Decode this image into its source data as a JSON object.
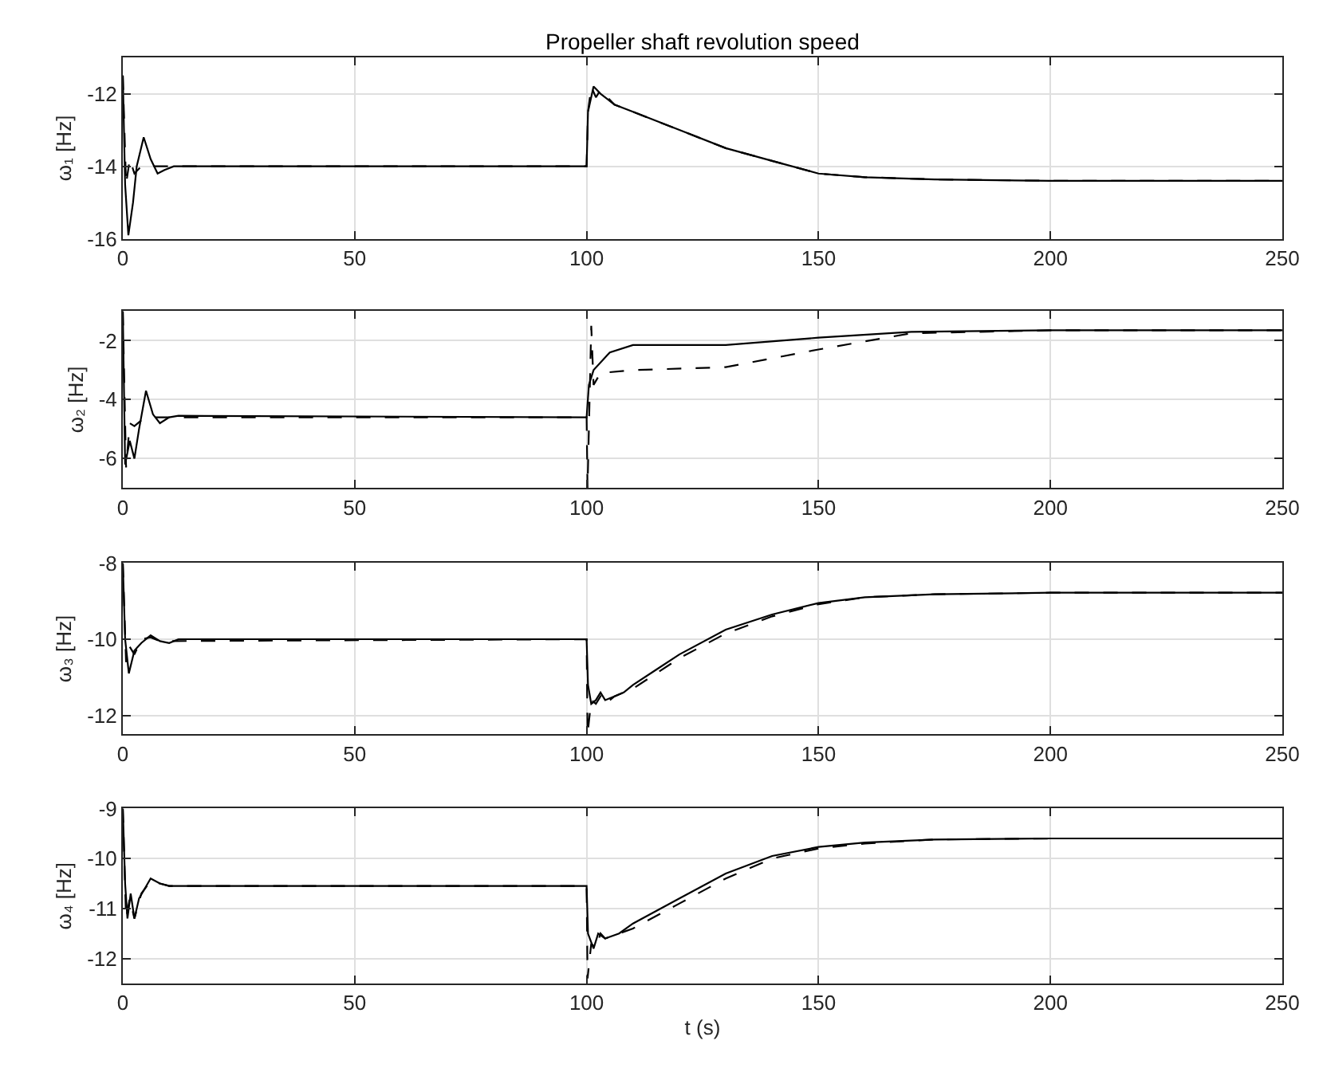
{
  "chart_data": [
    {
      "type": "line",
      "title": "Propeller shaft revolution speed",
      "ylabel": "ω₁ [Hz]",
      "xlim": [
        0,
        250
      ],
      "xticks": [
        0,
        50,
        100,
        150,
        200,
        250
      ],
      "ylim": [
        -16,
        -11
      ],
      "yticks": [
        -16,
        -14,
        -12
      ],
      "grid": true,
      "series": [
        {
          "color": "#000000",
          "line_style": "solid",
          "x": [
            0,
            0.5,
            1.2,
            2.2,
            3,
            4.5,
            6,
            7.5,
            9,
            11,
            100,
            100.3,
            101.5,
            103,
            106,
            110,
            120,
            130,
            140,
            150,
            160,
            175,
            200,
            250
          ],
          "values": [
            -11.5,
            -14.5,
            -15.9,
            -15,
            -14,
            -13.2,
            -13.8,
            -14.2,
            -14.1,
            -14,
            -14,
            -12.5,
            -11.8,
            -12,
            -12.3,
            -12.5,
            -13,
            -13.5,
            -13.85,
            -14.2,
            -14.3,
            -14.36,
            -14.4,
            -14.4
          ]
        },
        {
          "color": "#000000",
          "line_style": "dashed",
          "x": [
            0,
            0.7,
            1.5,
            2.5,
            4,
            6,
            100,
            100.3,
            101,
            102,
            103,
            106,
            110,
            120,
            130,
            140,
            150,
            160,
            175,
            200,
            250
          ],
          "values": [
            -11.5,
            -14.5,
            -13.8,
            -14.2,
            -14,
            -14,
            -14,
            -12.5,
            -11.8,
            -12.1,
            -11.9,
            -12.3,
            -12.5,
            -13,
            -13.5,
            -13.85,
            -14.2,
            -14.3,
            -14.36,
            -14.4,
            -14.4
          ]
        }
      ]
    },
    {
      "type": "line",
      "ylabel": "ω₂ [Hz]",
      "xlim": [
        0,
        250
      ],
      "xticks": [
        0,
        50,
        100,
        150,
        200,
        250
      ],
      "ylim": [
        -7,
        -1
      ],
      "yticks": [
        -6,
        -4,
        -2
      ],
      "grid": true,
      "series": [
        {
          "color": "#000000",
          "line_style": "solid",
          "x": [
            0,
            0.5,
            1.5,
            2.5,
            3.5,
            5,
            6.5,
            8,
            10,
            12,
            100,
            100.5,
            101.5,
            105,
            110,
            130,
            150,
            170,
            200,
            250
          ],
          "values": [
            -1,
            -6.2,
            -5.4,
            -6,
            -5,
            -3.7,
            -4.5,
            -4.8,
            -4.6,
            -4.55,
            -4.6,
            -3.5,
            -3,
            -2.4,
            -2.15,
            -2.15,
            -1.9,
            -1.7,
            -1.65,
            -1.65
          ]
        },
        {
          "color": "#000000",
          "line_style": "dashed",
          "x": [
            0,
            0.7,
            1.5,
            2.5,
            4,
            6,
            100,
            100.2,
            101,
            101.5,
            103,
            110,
            130,
            150,
            170,
            200,
            250
          ],
          "values": [
            -1,
            -6.3,
            -4.8,
            -4.9,
            -4.7,
            -4.6,
            -4.6,
            -7,
            -1.5,
            -3.5,
            -3.1,
            -3,
            -2.9,
            -2.3,
            -1.75,
            -1.65,
            -1.65
          ]
        }
      ]
    },
    {
      "type": "line",
      "ylabel": "ω₃ [Hz]",
      "xlim": [
        0,
        250
      ],
      "xticks": [
        0,
        50,
        100,
        150,
        200,
        250
      ],
      "ylim": [
        -12.5,
        -8
      ],
      "yticks": [
        -12,
        -10,
        -8
      ],
      "grid": true,
      "series": [
        {
          "color": "#000000",
          "line_style": "solid",
          "x": [
            0,
            0.5,
            1.3,
            2.5,
            4,
            6,
            8,
            10,
            12,
            100,
            100.3,
            101,
            102,
            103,
            104,
            106,
            108,
            110,
            115,
            120,
            130,
            140,
            150,
            160,
            175,
            200,
            250
          ],
          "values": [
            -8,
            -10,
            -10.9,
            -10.3,
            -10.1,
            -9.9,
            -10.05,
            -10.1,
            -10,
            -10,
            -11.2,
            -11.7,
            -11.6,
            -11.4,
            -11.6,
            -11.5,
            -11.4,
            -11.2,
            -10.8,
            -10.4,
            -9.75,
            -9.35,
            -9.05,
            -8.9,
            -8.82,
            -8.78,
            -8.78
          ]
        },
        {
          "color": "#000000",
          "line_style": "dashed",
          "x": [
            0,
            0.7,
            1.5,
            2.5,
            4,
            6,
            8,
            100,
            100.2,
            101,
            102,
            103,
            104,
            106,
            110,
            120,
            130,
            140,
            150,
            160,
            175,
            200,
            250
          ],
          "values": [
            -8,
            -10.6,
            -10.2,
            -10.4,
            -10,
            -9.95,
            -10.05,
            -10,
            -12.5,
            -11.6,
            -11.7,
            -11.5,
            -11.7,
            -11.5,
            -11.3,
            -10.5,
            -9.85,
            -9.4,
            -9.08,
            -8.9,
            -8.82,
            -8.78,
            -8.78
          ]
        }
      ]
    },
    {
      "type": "line",
      "ylabel": "ω₄ [Hz]",
      "xlabel": "t (s)",
      "xlim": [
        0,
        250
      ],
      "xticks": [
        0,
        50,
        100,
        150,
        200,
        250
      ],
      "ylim": [
        -12.5,
        -9
      ],
      "yticks": [
        -12,
        -11,
        -10,
        -9
      ],
      "grid": true,
      "series": [
        {
          "color": "#000000",
          "line_style": "solid",
          "x": [
            0,
            0.5,
            1,
            1.7,
            2.5,
            3.5,
            6,
            8,
            10,
            100,
            100.3,
            101.5,
            102.5,
            104,
            107,
            110,
            120,
            130,
            140,
            150,
            160,
            175,
            200,
            250
          ],
          "values": [
            -9,
            -10.5,
            -11.2,
            -10.7,
            -11.2,
            -10.8,
            -10.4,
            -10.5,
            -10.55,
            -10.55,
            -11.5,
            -11.8,
            -11.5,
            -11.6,
            -11.5,
            -11.3,
            -10.8,
            -10.3,
            -9.95,
            -9.77,
            -9.68,
            -9.62,
            -9.6,
            -9.6
          ]
        },
        {
          "color": "#000000",
          "line_style": "dashed",
          "x": [
            0,
            0.7,
            1.5,
            2.5,
            4,
            6,
            8,
            10,
            100,
            100.2,
            101,
            102,
            103,
            104,
            107,
            110,
            120,
            130,
            140,
            150,
            160,
            175,
            200,
            250
          ],
          "values": [
            -9,
            -11.2,
            -10.8,
            -11.2,
            -10.7,
            -10.45,
            -10.5,
            -10.55,
            -10.55,
            -12.4,
            -11.7,
            -11.8,
            -11.5,
            -11.6,
            -11.5,
            -11.4,
            -10.9,
            -10.4,
            -10,
            -9.8,
            -9.7,
            -9.62,
            -9.6,
            -9.6
          ]
        }
      ]
    }
  ]
}
